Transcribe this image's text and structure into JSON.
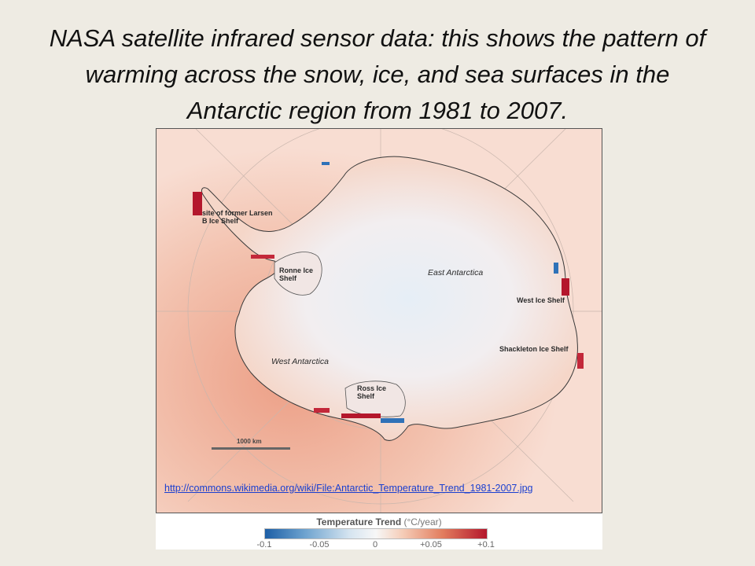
{
  "slide": {
    "title": "NASA satellite infrared sensor data: this shows the pattern of warming across the snow, ice, and sea surfaces in the Antarctic region from 1981 to 2007."
  },
  "map": {
    "labels": {
      "larsen": "site of former Larsen B Ice Shelf",
      "ronne": "Ronne Ice Shelf",
      "east_antarctica": "East Antarctica",
      "west_ice_shelf": "West Ice Shelf",
      "shackleton": "Shackleton Ice Shelf",
      "west_antarctica": "West Antarctica",
      "ross": "Ross Ice Shelf"
    },
    "scale_label": "1000 km",
    "source_url": "http://commons.wikimedia.org/wiki/File:Antarctic_Temperature_Trend_1981-2007.jpg"
  },
  "legend": {
    "title": "Temperature Trend",
    "unit": "(°C/year)",
    "ticks": [
      "-0.1",
      "-0.05",
      "0",
      "+0.05",
      "+0.1"
    ],
    "colors": {
      "cold": "#1d5fa6",
      "neutral": "#f7f7f7",
      "warm": "#b4172c"
    }
  }
}
